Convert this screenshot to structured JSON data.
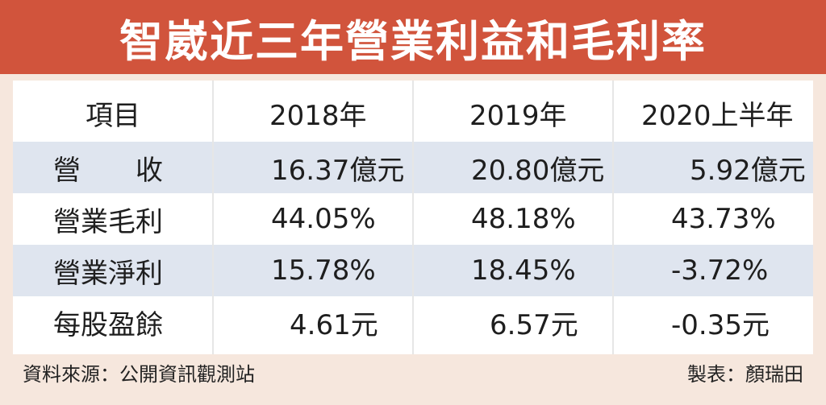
{
  "title": "智崴近三年營業利益和毛利率",
  "chart_data": {
    "type": "table",
    "columns": [
      "項目",
      "2018年",
      "2019年",
      "2020上半年"
    ],
    "rows": [
      [
        "營　　收",
        "16.37億元",
        "20.80億元",
        "5.92億元"
      ],
      [
        "營業毛利",
        "44.05%",
        "48.18%",
        "43.73%"
      ],
      [
        "營業淨利",
        "15.78%",
        "18.45%",
        "-3.72%"
      ],
      [
        "每股盈餘",
        "4.61元",
        "6.57元",
        "-0.35元"
      ]
    ]
  },
  "footer": {
    "source": "資料來源：公開資訊觀測站",
    "author": "製表：顏瑞田"
  },
  "colors": {
    "title_bar": "#d1543c",
    "row_shade": "#dfe5ef",
    "background": "#f6e7dd"
  }
}
